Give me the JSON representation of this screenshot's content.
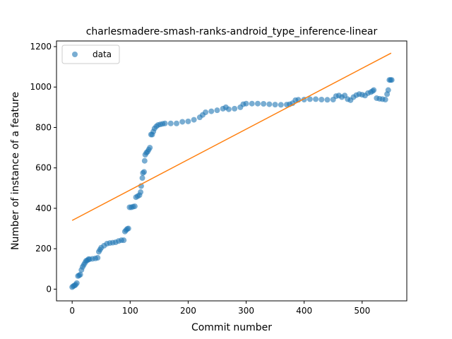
{
  "chart_data": {
    "type": "scatter",
    "title": "charlesmadere-smash-ranks-android_type_inference-linear",
    "xlabel": "Commit number",
    "ylabel": "Number of instance of a feature",
    "xlim": [
      -27,
      577
    ],
    "ylim": [
      -58,
      1228
    ],
    "xticks": [
      0,
      100,
      200,
      300,
      400,
      500
    ],
    "yticks": [
      0,
      200,
      400,
      600,
      800,
      1000,
      1200
    ],
    "grid": false,
    "legend": {
      "position": "top-left",
      "entries": [
        "data"
      ]
    },
    "colors": {
      "points": "#1f77b4",
      "fit": "#ff7f0e"
    },
    "series": [
      {
        "name": "data",
        "kind": "scatter",
        "points": [
          [
            0,
            10
          ],
          [
            2,
            15
          ],
          [
            4,
            18
          ],
          [
            6,
            22
          ],
          [
            8,
            30
          ],
          [
            10,
            65
          ],
          [
            12,
            68
          ],
          [
            14,
            72
          ],
          [
            16,
            95
          ],
          [
            18,
            110
          ],
          [
            20,
            120
          ],
          [
            22,
            130
          ],
          [
            24,
            140
          ],
          [
            26,
            142
          ],
          [
            28,
            148
          ],
          [
            30,
            148
          ],
          [
            35,
            150
          ],
          [
            40,
            152
          ],
          [
            44,
            155
          ],
          [
            46,
            185
          ],
          [
            48,
            195
          ],
          [
            50,
            205
          ],
          [
            55,
            215
          ],
          [
            60,
            225
          ],
          [
            65,
            228
          ],
          [
            70,
            230
          ],
          [
            75,
            232
          ],
          [
            80,
            238
          ],
          [
            85,
            242
          ],
          [
            89,
            242
          ],
          [
            91,
            285
          ],
          [
            93,
            292
          ],
          [
            95,
            298
          ],
          [
            97,
            300
          ],
          [
            99,
            405
          ],
          [
            102,
            405
          ],
          [
            105,
            408
          ],
          [
            108,
            410
          ],
          [
            110,
            455
          ],
          [
            113,
            460
          ],
          [
            116,
            465
          ],
          [
            118,
            480
          ],
          [
            119,
            510
          ],
          [
            121,
            550
          ],
          [
            122,
            575
          ],
          [
            124,
            580
          ],
          [
            125,
            635
          ],
          [
            126,
            665
          ],
          [
            128,
            675
          ],
          [
            130,
            680
          ],
          [
            132,
            690
          ],
          [
            134,
            700
          ],
          [
            136,
            765
          ],
          [
            138,
            765
          ],
          [
            140,
            780
          ],
          [
            142,
            795
          ],
          [
            145,
            805
          ],
          [
            148,
            812
          ],
          [
            152,
            815
          ],
          [
            156,
            818
          ],
          [
            160,
            820
          ],
          [
            170,
            820
          ],
          [
            180,
            820
          ],
          [
            190,
            828
          ],
          [
            200,
            830
          ],
          [
            210,
            838
          ],
          [
            220,
            850
          ],
          [
            225,
            862
          ],
          [
            230,
            875
          ],
          [
            240,
            880
          ],
          [
            250,
            885
          ],
          [
            260,
            893
          ],
          [
            265,
            900
          ],
          [
            270,
            890
          ],
          [
            280,
            893
          ],
          [
            290,
            900
          ],
          [
            295,
            915
          ],
          [
            300,
            918
          ],
          [
            310,
            918
          ],
          [
            320,
            918
          ],
          [
            330,
            917
          ],
          [
            340,
            915
          ],
          [
            350,
            913
          ],
          [
            360,
            912
          ],
          [
            370,
            913
          ],
          [
            375,
            915
          ],
          [
            380,
            920
          ],
          [
            385,
            935
          ],
          [
            390,
            937
          ],
          [
            400,
            938
          ],
          [
            410,
            940
          ],
          [
            420,
            940
          ],
          [
            430,
            938
          ],
          [
            440,
            937
          ],
          [
            450,
            938
          ],
          [
            455,
            955
          ],
          [
            460,
            958
          ],
          [
            465,
            950
          ],
          [
            470,
            958
          ],
          [
            475,
            940
          ],
          [
            480,
            935
          ],
          [
            485,
            950
          ],
          [
            490,
            960
          ],
          [
            495,
            965
          ],
          [
            500,
            962
          ],
          [
            505,
            958
          ],
          [
            510,
            970
          ],
          [
            515,
            975
          ],
          [
            518,
            980
          ],
          [
            520,
            985
          ],
          [
            525,
            945
          ],
          [
            530,
            942
          ],
          [
            535,
            940
          ],
          [
            540,
            938
          ],
          [
            543,
            965
          ],
          [
            545,
            985
          ],
          [
            547,
            1035
          ],
          [
            549,
            1035
          ],
          [
            551,
            1035
          ]
        ]
      },
      {
        "name": "",
        "kind": "line",
        "points": [
          [
            0,
            340
          ],
          [
            550,
            1168
          ]
        ]
      }
    ]
  }
}
